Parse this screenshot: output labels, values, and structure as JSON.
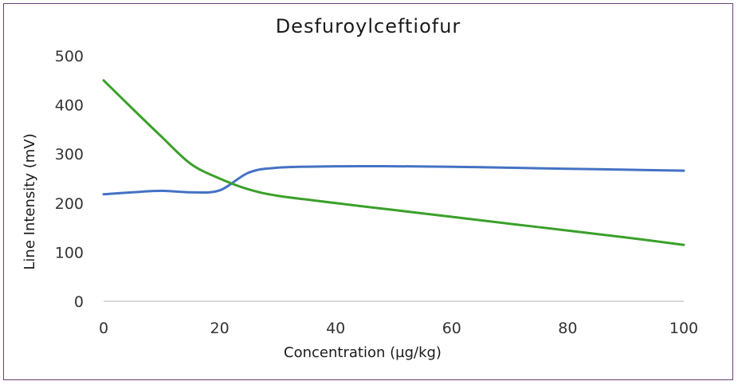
{
  "chart_data": {
    "type": "line",
    "title": "Desfuroylceftiofur",
    "xlabel": "Concentration (µg/kg)",
    "ylabel": "Line Intensity (mV)",
    "xlim": [
      0,
      100
    ],
    "ylim": [
      0,
      500
    ],
    "xticks": [
      "0",
      "20",
      "40",
      "60",
      "80",
      "100"
    ],
    "yticks": [
      "0",
      "100",
      "200",
      "300",
      "400",
      "500"
    ],
    "grid": false,
    "legend": "none",
    "series": [
      {
        "color": "#4472c4",
        "x": [
          0,
          5,
          10,
          15,
          20,
          25,
          30,
          40,
          50,
          60,
          70,
          80,
          90,
          100
        ],
        "y": [
          218,
          222,
          225,
          222,
          226,
          262,
          272,
          275,
          275,
          274,
          272,
          270,
          268,
          266
        ]
      },
      {
        "color": "#3aa02a",
        "x": [
          0,
          5,
          10,
          15,
          20,
          25,
          30,
          40,
          50,
          60,
          70,
          80,
          90,
          100
        ],
        "y": [
          450,
          392,
          335,
          280,
          250,
          228,
          215,
          200,
          186,
          172,
          158,
          144,
          130,
          115
        ]
      }
    ]
  }
}
